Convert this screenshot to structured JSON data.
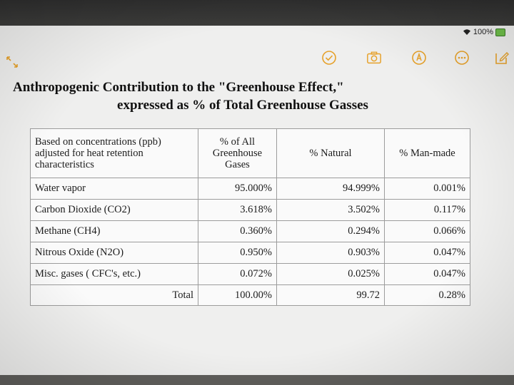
{
  "status": {
    "battery_text": "100%"
  },
  "colors": {
    "accent": "#e6a12a",
    "screen_bg": "#efefee"
  },
  "toolbar": {
    "icons": [
      "check-circle-icon",
      "camera-icon",
      "markup-icon",
      "more-icon",
      "compose-icon"
    ]
  },
  "document": {
    "title_line1": "Anthropogenic Contribution to the \"Greenhouse Effect,\"",
    "title_line2": "expressed as % of Total Greenhouse Gasses",
    "table": {
      "headers": [
        "Based on concentrations (ppb) adjusted for heat retention characteristics",
        "% of All Greenhouse Gases",
        "% Natural",
        "% Man-made"
      ],
      "rows": [
        [
          "Water vapor",
          "95.000%",
          "94.999%",
          "0.001%"
        ],
        [
          "Carbon Dioxide (CO2)",
          "3.618%",
          "3.502%",
          "0.117%"
        ],
        [
          "Methane (CH4)",
          "0.360%",
          "0.294%",
          "0.066%"
        ],
        [
          "Nitrous Oxide (N2O)",
          "0.950%",
          "0.903%",
          "0.047%"
        ],
        [
          "Misc. gases ( CFC's, etc.)",
          "0.072%",
          "0.025%",
          "0.047%"
        ]
      ],
      "total": [
        "Total",
        "100.00%",
        "99.72",
        "0.28%"
      ]
    }
  }
}
